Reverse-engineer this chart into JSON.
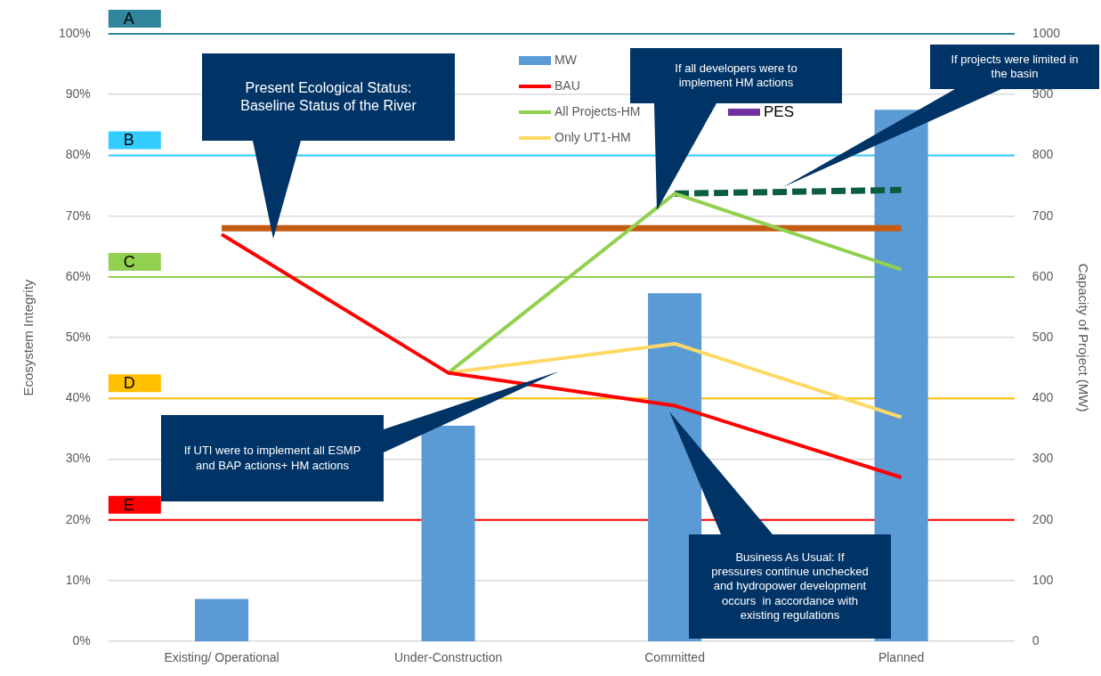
{
  "chart_data": {
    "type": "bar",
    "categories": [
      "Existing/ Operational",
      "Under-Construction",
      "Committed",
      "Planned"
    ],
    "ylabel": "Ecosystem Integrity",
    "y2label": "Capacity of Project (MW)",
    "ylim": [
      0,
      100
    ],
    "yticks": [
      {
        "value": 0,
        "label": "0%"
      },
      {
        "value": 10,
        "label": "10%"
      },
      {
        "value": 20,
        "label": "20%"
      },
      {
        "value": 30,
        "label": "30%"
      },
      {
        "value": 40,
        "label": "40%"
      },
      {
        "value": 50,
        "label": "50%"
      },
      {
        "value": 60,
        "label": "60%"
      },
      {
        "value": 70,
        "label": "70%"
      },
      {
        "value": 80,
        "label": "80%"
      },
      {
        "value": 90,
        "label": "90%"
      },
      {
        "value": 100,
        "label": "100%"
      }
    ],
    "y2lim": [
      0,
      1000
    ],
    "y2ticks": [
      0,
      100,
      200,
      300,
      400,
      500,
      600,
      700,
      800,
      900,
      1000
    ],
    "grid": "y",
    "legend": "top",
    "marker": "none",
    "series": [
      {
        "name": "MW",
        "axis": "y2",
        "color": "#5b9bd5",
        "values": [
          70,
          355,
          573,
          875
        ]
      },
      {
        "name": "BAU",
        "type": "line",
        "color": "#ff0000",
        "values": [
          67,
          44.2,
          38.8,
          27
        ]
      },
      {
        "name": "All Projects-HM",
        "type": "line",
        "color": "#92d050",
        "values": [
          null,
          44.2,
          73.7,
          61.2
        ]
      },
      {
        "name": "Only UT1-HM",
        "type": "line",
        "color": "#ffd966",
        "values": [
          null,
          44.2,
          49,
          36.9
        ]
      },
      {
        "name": "PES",
        "type": "line",
        "color": "#7030a0",
        "values": [
          null,
          null,
          null,
          null
        ]
      },
      {
        "type": "line",
        "color": "#c55a11",
        "values": [
          68,
          68,
          68,
          68
        ]
      },
      {
        "type": "line",
        "color": "#0b5d3f",
        "line_style": "dashed",
        "values": [
          null,
          null,
          73.7,
          74.3
        ]
      }
    ],
    "ref_lines": [
      {
        "axis": "y",
        "value": 100,
        "label": "A",
        "color": "#31859c"
      },
      {
        "axis": "y",
        "value": 80,
        "label": "B",
        "color": "#33ccff"
      },
      {
        "axis": "y",
        "value": 60,
        "label": "C",
        "color": "#92d050"
      },
      {
        "axis": "y",
        "value": 40,
        "label": "D",
        "color": "#ffc000"
      },
      {
        "axis": "y",
        "value": 20,
        "label": "E",
        "color": "#ff0000"
      }
    ],
    "annotations": [
      "Present Ecological Status: Baseline Status of the River",
      "If all developers were to implement HM actions",
      "If projects were limited in the basin",
      "If UTI were to implement all ESMP and BAP actions+ HM actions",
      "Business As Usual: If pressures continue unchecked and hydropower development occurs  in accordance with existing regulations"
    ]
  }
}
